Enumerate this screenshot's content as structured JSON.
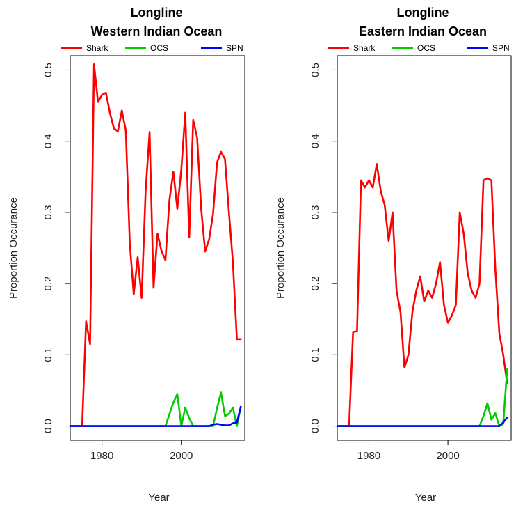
{
  "chart_data": [
    {
      "type": "line",
      "title": "Longline",
      "subtitle": "Western Indian Ocean",
      "xlabel": "Year",
      "ylabel": "Proportion Occurance",
      "xlim": [
        1972,
        2016
      ],
      "ylim": [
        -0.02,
        0.52
      ],
      "xticks": [
        1980,
        2000
      ],
      "yticks": [
        0.0,
        0.1,
        0.2,
        0.3,
        0.4,
        0.5
      ],
      "legend_position": "top",
      "series": [
        {
          "name": "Shark",
          "color": "#ff0000",
          "x": [
            1972,
            1975,
            1976,
            1977,
            1978,
            1979,
            1980,
            1981,
            1982,
            1983,
            1984,
            1985,
            1986,
            1987,
            1988,
            1989,
            1990,
            1991,
            1992,
            1993,
            1994,
            1995,
            1996,
            1997,
            1998,
            1999,
            2000,
            2001,
            2002,
            2003,
            2004,
            2005,
            2006,
            2007,
            2008,
            2009,
            2010,
            2011,
            2012,
            2013,
            2014,
            2015
          ],
          "y": [
            0.0,
            0.0,
            0.147,
            0.115,
            0.508,
            0.455,
            0.465,
            0.468,
            0.44,
            0.418,
            0.414,
            0.443,
            0.415,
            0.257,
            0.185,
            0.237,
            0.18,
            0.33,
            0.413,
            0.194,
            0.27,
            0.246,
            0.233,
            0.317,
            0.357,
            0.305,
            0.36,
            0.44,
            0.265,
            0.43,
            0.405,
            0.305,
            0.245,
            0.262,
            0.298,
            0.37,
            0.385,
            0.375,
            0.3,
            0.23,
            0.122,
            0.122
          ]
        },
        {
          "name": "OCS",
          "color": "#00cc00",
          "x": [
            1972,
            1996,
            1998,
            1999,
            2000,
            2001,
            2002,
            2003,
            2008,
            2009,
            2010,
            2011,
            2012,
            2013,
            2014,
            2015
          ],
          "y": [
            0.0,
            0.0,
            0.033,
            0.045,
            0.0,
            0.026,
            0.011,
            0.0,
            0.0,
            0.025,
            0.047,
            0.014,
            0.017,
            0.026,
            0.0,
            0.027
          ]
        },
        {
          "name": "SPN",
          "color": "#0000ff",
          "x": [
            1972,
            2007,
            2008,
            2009,
            2010,
            2011,
            2012,
            2013,
            2014,
            2015
          ],
          "y": [
            0.0,
            0.0,
            0.002,
            0.003,
            0.002,
            0.001,
            0.001,
            0.004,
            0.005,
            0.027
          ]
        }
      ]
    },
    {
      "type": "line",
      "title": "Longline",
      "subtitle": "Eastern Indian Ocean",
      "xlabel": "Year",
      "ylabel": "Proportion Occurance",
      "xlim": [
        1972,
        2016
      ],
      "ylim": [
        -0.02,
        0.52
      ],
      "xticks": [
        1980,
        2000
      ],
      "yticks": [
        0.0,
        0.1,
        0.2,
        0.3,
        0.4,
        0.5
      ],
      "legend_position": "top",
      "series": [
        {
          "name": "Shark",
          "color": "#ff0000",
          "x": [
            1972,
            1975,
            1976,
            1977,
            1978,
            1979,
            1980,
            1981,
            1982,
            1983,
            1984,
            1985,
            1986,
            1987,
            1988,
            1989,
            1990,
            1991,
            1992,
            1993,
            1994,
            1995,
            1996,
            1997,
            1998,
            1999,
            2000,
            2001,
            2002,
            2003,
            2004,
            2005,
            2006,
            2007,
            2008,
            2009,
            2010,
            2011,
            2012,
            2013,
            2014,
            2015
          ],
          "y": [
            0.0,
            0.0,
            0.132,
            0.133,
            0.345,
            0.335,
            0.345,
            0.335,
            0.368,
            0.33,
            0.31,
            0.26,
            0.3,
            0.19,
            0.16,
            0.082,
            0.1,
            0.16,
            0.19,
            0.21,
            0.175,
            0.19,
            0.18,
            0.2,
            0.23,
            0.17,
            0.145,
            0.155,
            0.17,
            0.3,
            0.27,
            0.215,
            0.19,
            0.18,
            0.2,
            0.345,
            0.348,
            0.345,
            0.22,
            0.13,
            0.1,
            0.06
          ]
        },
        {
          "name": "OCS",
          "color": "#00cc00",
          "x": [
            1972,
            2008,
            2009,
            2010,
            2011,
            2012,
            2013,
            2014,
            2015
          ],
          "y": [
            0.0,
            0.0,
            0.014,
            0.032,
            0.009,
            0.018,
            0.0,
            0.003,
            0.08
          ]
        },
        {
          "name": "SPN",
          "color": "#0000ff",
          "x": [
            1972,
            2013,
            2014,
            2015
          ],
          "y": [
            0.0,
            0.0,
            0.005,
            0.012
          ]
        }
      ]
    }
  ]
}
